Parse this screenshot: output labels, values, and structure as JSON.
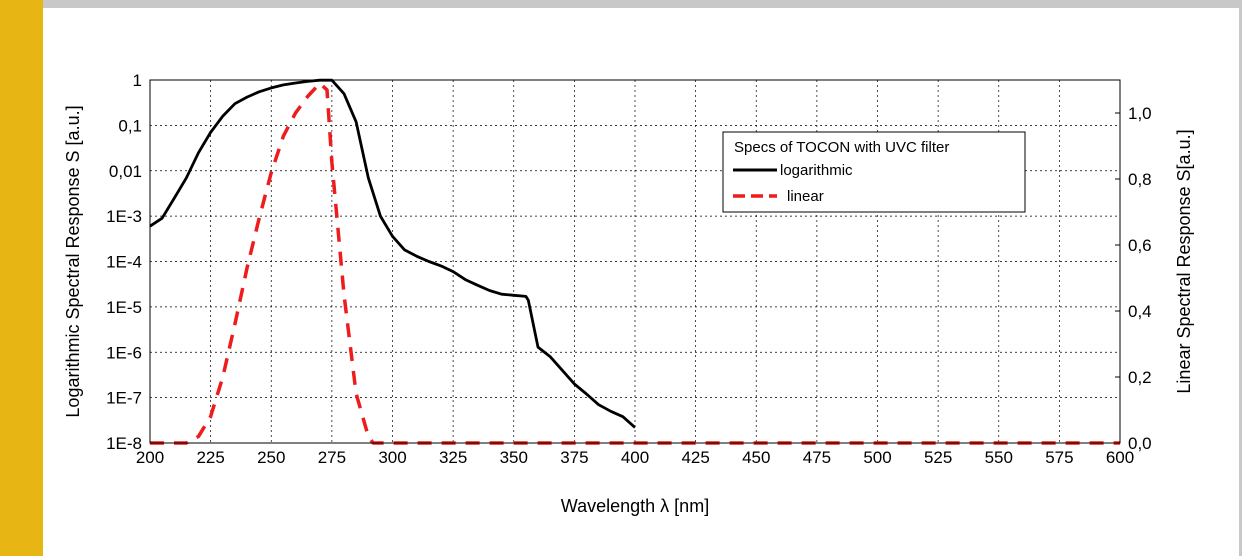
{
  "colors": {
    "accent": "#E7B614",
    "rule": "#C8C8C8",
    "log_series": "#000000",
    "lin_series": "#EE1C1C"
  },
  "chart_data": {
    "type": "line",
    "title": "",
    "xlabel": "Wavelength λ [nm]",
    "ylabel_left": "Logarithmic Spectral Response S [a.u.]",
    "ylabel_right": "Linear Spectral Response S[a.u.]",
    "xlim": [
      200,
      600
    ],
    "ylim_left": [
      1e-08,
      1
    ],
    "yscale_left": "log",
    "ylim_right": [
      0,
      1.1
    ],
    "grid": true,
    "legend_position": "top-right",
    "x_ticks": [
      "200",
      "225",
      "250",
      "275",
      "300",
      "325",
      "350",
      "375",
      "400",
      "425",
      "450",
      "475",
      "500",
      "525",
      "550",
      "575",
      "600"
    ],
    "y_left_ticks": [
      "1",
      "0,1",
      "0,01",
      "1E-3",
      "1E-4",
      "1E-5",
      "1E-6",
      "1E-7",
      "1E-8"
    ],
    "y_right_ticks": [
      "1,0",
      "0,8",
      "0,6",
      "0,4",
      "0,2",
      "0,0"
    ],
    "legend_title": "Specs of TOCON with UVC filter",
    "series": [
      {
        "name": "logarithmic",
        "axis": "left",
        "style": "solid",
        "x": [
          200,
          205,
          210,
          215,
          220,
          225,
          230,
          235,
          240,
          245,
          250,
          255,
          260,
          265,
          270,
          275,
          280,
          285,
          290,
          295,
          300,
          305,
          310,
          315,
          320,
          325,
          330,
          335,
          340,
          345,
          350,
          355,
          356,
          360,
          365,
          370,
          375,
          380,
          385,
          390,
          395,
          400
        ],
        "y": [
          0.0006,
          0.0009,
          0.0025,
          0.007,
          0.025,
          0.07,
          0.16,
          0.3,
          0.42,
          0.55,
          0.67,
          0.78,
          0.86,
          0.93,
          0.99,
          0.99,
          0.5,
          0.12,
          0.007,
          0.001,
          0.00036,
          0.00018,
          0.00013,
          0.0001,
          8e-05,
          6e-05,
          4e-05,
          3e-05,
          2.3e-05,
          1.9e-05,
          1.8e-05,
          1.7e-05,
          1.4e-05,
          1.3e-06,
          8e-07,
          4e-07,
          2e-07,
          1.2e-07,
          7e-08,
          5e-08,
          3.8e-08,
          2.2e-08
        ]
      },
      {
        "name": "linear",
        "axis": "right",
        "style": "dashed",
        "x": [
          200,
          205,
          210,
          215,
          220,
          225,
          230,
          235,
          240,
          245,
          250,
          255,
          260,
          265,
          270,
          273,
          275,
          280,
          285,
          290,
          292,
          300,
          400,
          500,
          600
        ],
        "y": [
          0,
          0,
          0,
          0,
          0.02,
          0.08,
          0.2,
          0.36,
          0.53,
          0.68,
          0.82,
          0.93,
          1.0,
          1.05,
          1.09,
          1.07,
          0.85,
          0.45,
          0.15,
          0.02,
          0,
          0,
          0,
          0,
          0
        ]
      }
    ]
  }
}
